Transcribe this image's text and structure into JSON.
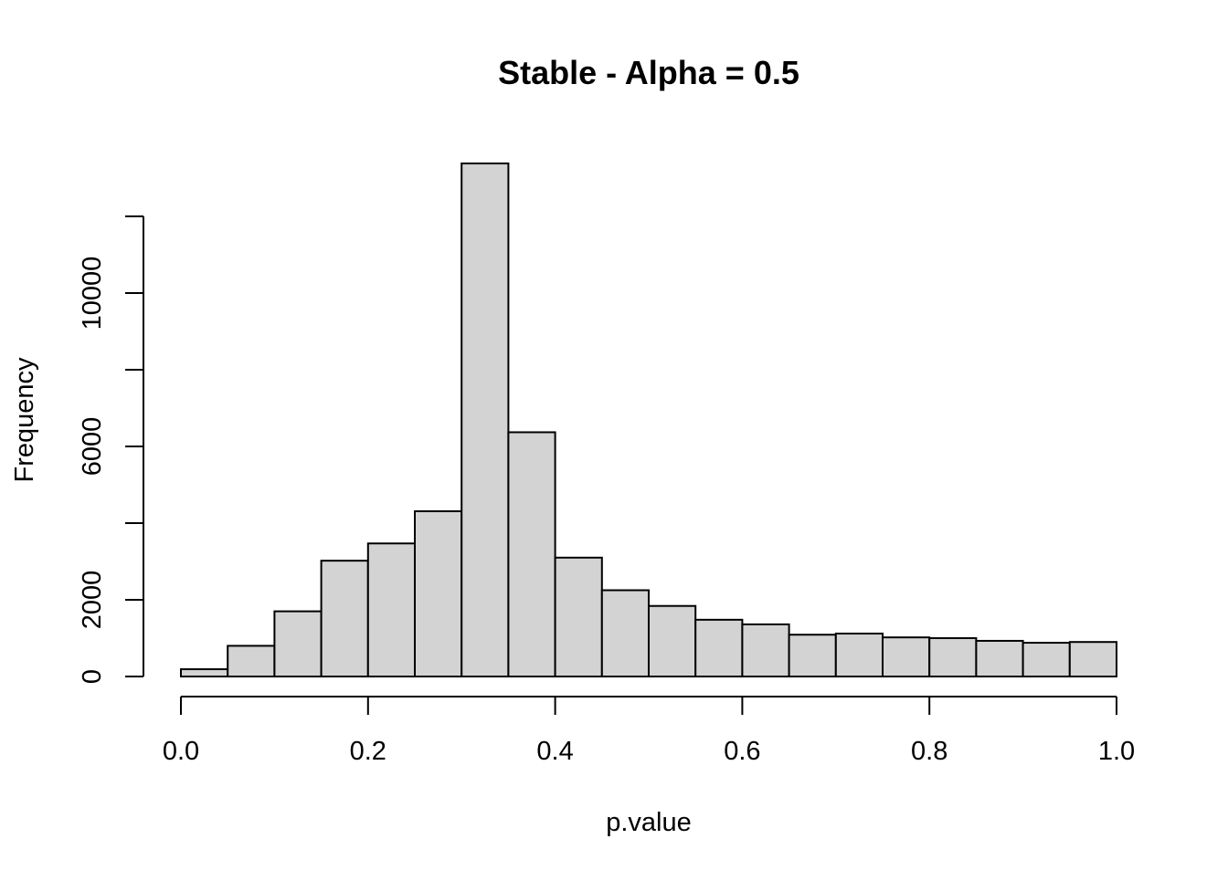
{
  "chart_data": {
    "type": "bar",
    "title": "Stable - Alpha = 0.5",
    "xlabel": "p.value",
    "ylabel": "Frequency",
    "bin_edges": [
      0.0,
      0.05,
      0.1,
      0.15,
      0.2,
      0.25,
      0.3,
      0.35,
      0.4,
      0.45,
      0.5,
      0.55,
      0.6,
      0.65,
      0.7,
      0.75,
      0.8,
      0.85,
      0.9,
      0.95,
      1.0
    ],
    "values": [
      190,
      800,
      1700,
      3020,
      3470,
      4310,
      13380,
      6370,
      3100,
      2250,
      1840,
      1480,
      1360,
      1090,
      1120,
      1020,
      1000,
      930,
      880,
      900
    ],
    "xlim": [
      0.0,
      1.0
    ],
    "ylim": [
      0,
      12000
    ],
    "x_ticks": [
      0.0,
      0.2,
      0.4,
      0.6,
      0.8,
      1.0
    ],
    "x_tick_labels": [
      "0.0",
      "0.2",
      "0.4",
      "0.6",
      "0.8",
      "1.0"
    ],
    "y_ticks": [
      0,
      2000,
      4000,
      6000,
      8000,
      10000,
      12000
    ],
    "y_tick_labels": [
      "0",
      "2000",
      "",
      "6000",
      "",
      "10000",
      ""
    ],
    "bar_fill": "#d3d3d3",
    "bar_stroke": "#000000",
    "grid": false
  }
}
